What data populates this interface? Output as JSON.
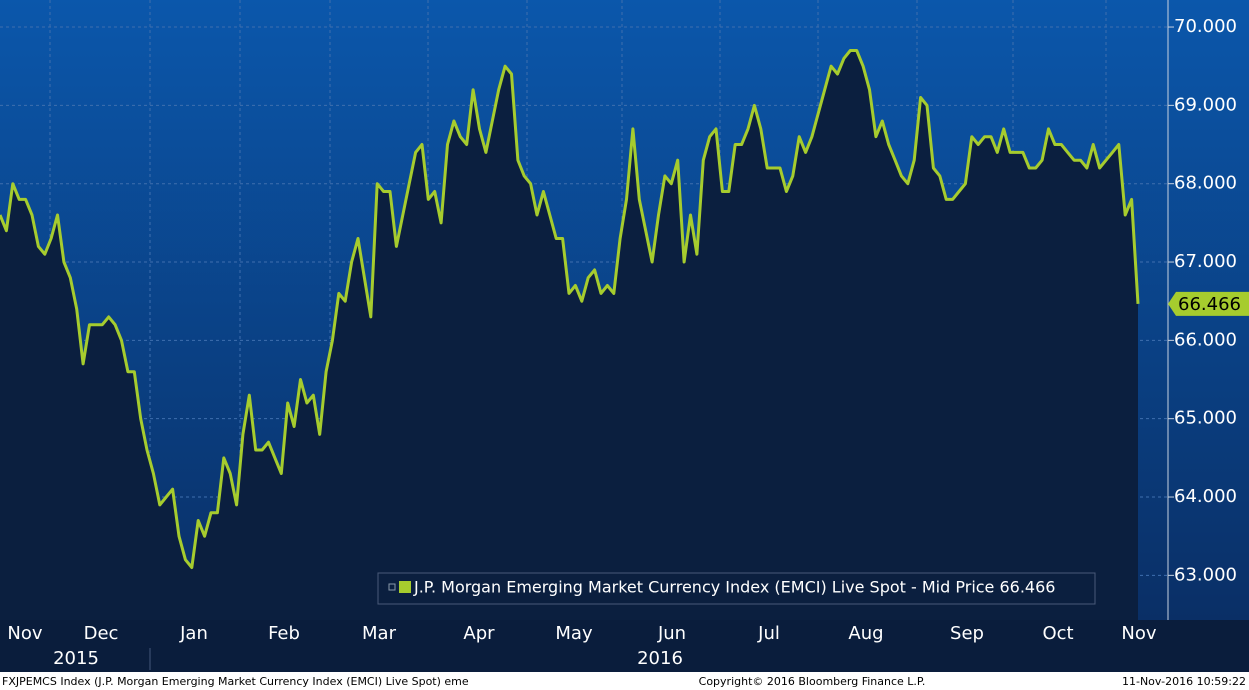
{
  "chart_data": {
    "type": "line",
    "series": [
      {
        "name": "J.P. Morgan Emerging Market Currency Index (EMCI) Live Spot - Mid Price 66.466",
        "color": "#a6cc2e",
        "values": [
          67.6,
          67.4,
          68.0,
          67.8,
          67.8,
          67.6,
          67.2,
          67.1,
          67.3,
          67.6,
          67.0,
          66.8,
          66.4,
          65.7,
          66.2,
          66.2,
          66.2,
          66.3,
          66.2,
          66.0,
          65.6,
          65.6,
          65.0,
          64.6,
          64.3,
          63.9,
          64.0,
          64.1,
          63.5,
          63.2,
          63.1,
          63.7,
          63.5,
          63.8,
          63.8,
          64.5,
          64.3,
          63.9,
          64.8,
          65.3,
          64.6,
          64.6,
          64.7,
          64.5,
          64.3,
          65.2,
          64.9,
          65.5,
          65.2,
          65.3,
          64.8,
          65.6,
          66.0,
          66.6,
          66.5,
          67.0,
          67.3,
          66.8,
          66.3,
          68.0,
          67.9,
          67.9,
          67.2,
          67.6,
          68.0,
          68.4,
          68.5,
          67.8,
          67.9,
          67.5,
          68.5,
          68.8,
          68.6,
          68.5,
          69.2,
          68.7,
          68.4,
          68.8,
          69.2,
          69.5,
          69.4,
          68.3,
          68.1,
          68.0,
          67.6,
          67.9,
          67.6,
          67.3,
          67.3,
          66.6,
          66.7,
          66.5,
          66.8,
          66.9,
          66.6,
          66.7,
          66.6,
          67.3,
          67.8,
          68.7,
          67.8,
          67.4,
          67.0,
          67.6,
          68.1,
          68.0,
          68.3,
          67.0,
          67.6,
          67.1,
          68.3,
          68.6,
          68.7,
          67.9,
          67.9,
          68.5,
          68.5,
          68.7,
          69.0,
          68.7,
          68.2,
          68.2,
          68.2,
          67.9,
          68.1,
          68.6,
          68.4,
          68.6,
          68.9,
          69.2,
          69.5,
          69.4,
          69.6,
          69.7,
          69.7,
          69.5,
          69.2,
          68.6,
          68.8,
          68.5,
          68.3,
          68.1,
          68.0,
          68.3,
          69.1,
          69.0,
          68.2,
          68.1,
          67.8,
          67.8,
          67.9,
          68.0,
          68.6,
          68.5,
          68.6,
          68.6,
          68.4,
          68.7,
          68.4,
          68.4,
          68.4,
          68.2,
          68.2,
          68.3,
          68.7,
          68.5,
          68.5,
          68.4,
          68.3,
          68.3,
          68.2,
          68.5,
          68.2,
          68.3,
          68.4,
          68.5,
          67.6,
          67.8,
          66.466
        ]
      }
    ],
    "last_price": 66.466,
    "months": [
      "Nov",
      "Dec",
      "Jan",
      "Feb",
      "Mar",
      "Apr",
      "May",
      "Jun",
      "Jul",
      "Aug",
      "Sep",
      "Oct",
      "Nov"
    ],
    "years": [
      "2015",
      "2016"
    ],
    "ylim": [
      62.43,
      70.345
    ],
    "yticks": [
      {
        "value": 63,
        "label": "63.000"
      },
      {
        "value": 64,
        "label": "64.000"
      },
      {
        "value": 65,
        "label": "65.000"
      },
      {
        "value": 66,
        "label": "66.000"
      },
      {
        "value": 67,
        "label": "67.000"
      },
      {
        "value": 68,
        "label": "68.000"
      },
      {
        "value": 69,
        "label": "69.000"
      },
      {
        "value": 70,
        "label": "70.000"
      }
    ],
    "grid": true,
    "footer": {
      "left": "FXJPEMCS Index (J.P. Morgan Emerging Market Currency Index (EMCI) Live Spot) eme",
      "center": "Copyright© 2016 Bloomberg Finance L.P.",
      "right": "11-Nov-2016 10:59:22"
    }
  }
}
